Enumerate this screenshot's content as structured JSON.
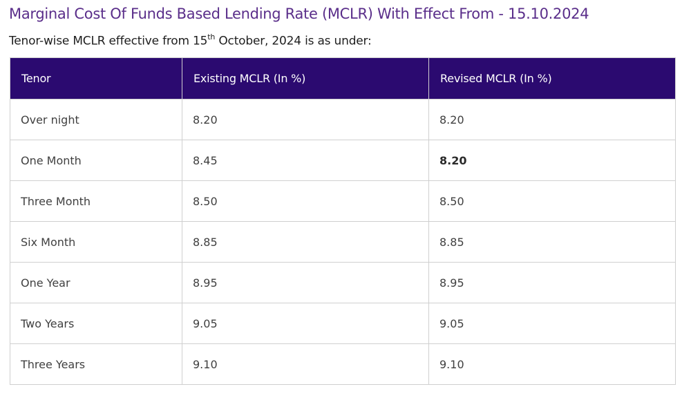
{
  "title": "Marginal Cost Of Funds Based Lending Rate (MCLR) With Effect From - 15.10.2024",
  "subtitle": {
    "before": "Tenor-wise MCLR effective from 15",
    "sup": "th",
    "after": " October, 2024 is as under:"
  },
  "table": {
    "headers": [
      "Tenor",
      "Existing MCLR (In %)",
      "Revised MCLR (In %)"
    ],
    "rows": [
      {
        "tenor": "Over night",
        "existing": "8.20",
        "revised": "8.20"
      },
      {
        "tenor": "One Month",
        "existing": "8.45",
        "revised": "8.20"
      },
      {
        "tenor": "Three Month",
        "existing": "8.50",
        "revised": "8.50"
      },
      {
        "tenor": "Six Month",
        "existing": "8.85",
        "revised": "8.85"
      },
      {
        "tenor": "One Year",
        "existing": "8.95",
        "revised": "8.95"
      },
      {
        "tenor": "Two Years",
        "existing": "9.05",
        "revised": "9.05"
      },
      {
        "tenor": "Three Years",
        "existing": "9.10",
        "revised": "9.10"
      }
    ]
  },
  "colors": {
    "title": "#5a2e8a",
    "header_bg": "#2b0a70",
    "header_text": "#ffffff"
  }
}
